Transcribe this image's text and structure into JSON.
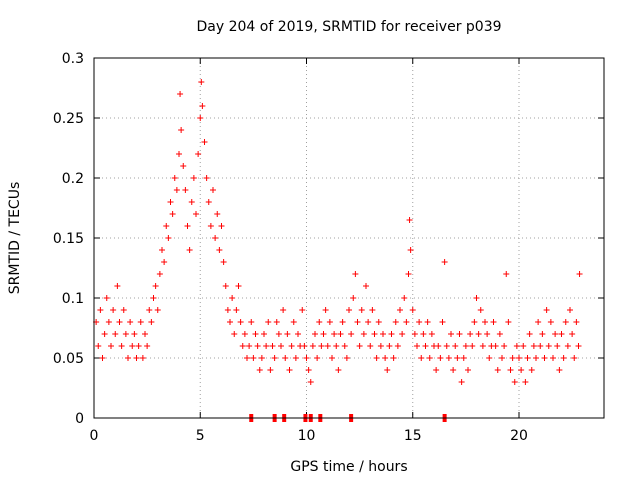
{
  "chart_data": {
    "type": "scatter",
    "title": "Day 204 of 2019, SRMTID for receiver p039",
    "xlabel": "GPS time / hours",
    "ylabel": "SRMTID / TECUs",
    "xlim": [
      0,
      24
    ],
    "ylim": [
      0,
      0.3
    ],
    "xticks": [
      0,
      5,
      10,
      15,
      20
    ],
    "xtick_labels": [
      "0",
      "5",
      "10",
      "15",
      "20"
    ],
    "yticks": [
      0,
      0.05,
      0.1,
      0.15,
      0.2,
      0.25,
      0.3
    ],
    "ytick_labels": [
      "0",
      "0.05",
      "0.1",
      "0.15",
      "0.2",
      "0.25",
      "0.3"
    ],
    "grid": true,
    "marker": "+",
    "color": "#ff0000",
    "series": [
      {
        "name": "SRMTID",
        "points": [
          [
            0.1,
            0.08
          ],
          [
            0.2,
            0.06
          ],
          [
            0.3,
            0.09
          ],
          [
            0.4,
            0.05
          ],
          [
            0.5,
            0.07
          ],
          [
            0.6,
            0.1
          ],
          [
            0.7,
            0.08
          ],
          [
            0.8,
            0.06
          ],
          [
            0.9,
            0.09
          ],
          [
            1.0,
            0.07
          ],
          [
            1.1,
            0.11
          ],
          [
            1.2,
            0.08
          ],
          [
            1.3,
            0.06
          ],
          [
            1.4,
            0.09
          ],
          [
            1.5,
            0.07
          ],
          [
            1.6,
            0.05
          ],
          [
            1.7,
            0.08
          ],
          [
            1.8,
            0.06
          ],
          [
            1.9,
            0.07
          ],
          [
            2.0,
            0.05
          ],
          [
            2.1,
            0.06
          ],
          [
            2.2,
            0.08
          ],
          [
            2.3,
            0.05
          ],
          [
            2.4,
            0.07
          ],
          [
            2.5,
            0.06
          ],
          [
            2.6,
            0.09
          ],
          [
            2.7,
            0.08
          ],
          [
            2.8,
            0.1
          ],
          [
            2.9,
            0.11
          ],
          [
            3.0,
            0.09
          ],
          [
            3.1,
            0.12
          ],
          [
            3.2,
            0.14
          ],
          [
            3.3,
            0.13
          ],
          [
            3.4,
            0.16
          ],
          [
            3.5,
            0.15
          ],
          [
            3.6,
            0.18
          ],
          [
            3.7,
            0.17
          ],
          [
            3.8,
            0.2
          ],
          [
            3.9,
            0.19
          ],
          [
            4.0,
            0.22
          ],
          [
            4.05,
            0.27
          ],
          [
            4.1,
            0.24
          ],
          [
            4.2,
            0.21
          ],
          [
            4.3,
            0.19
          ],
          [
            4.4,
            0.16
          ],
          [
            4.5,
            0.14
          ],
          [
            4.6,
            0.18
          ],
          [
            4.7,
            0.2
          ],
          [
            4.8,
            0.17
          ],
          [
            4.9,
            0.22
          ],
          [
            5.0,
            0.25
          ],
          [
            5.05,
            0.28
          ],
          [
            5.1,
            0.26
          ],
          [
            5.2,
            0.23
          ],
          [
            5.3,
            0.2
          ],
          [
            5.4,
            0.18
          ],
          [
            5.5,
            0.16
          ],
          [
            5.6,
            0.19
          ],
          [
            5.7,
            0.15
          ],
          [
            5.8,
            0.17
          ],
          [
            5.9,
            0.14
          ],
          [
            6.0,
            0.16
          ],
          [
            6.1,
            0.13
          ],
          [
            6.2,
            0.11
          ],
          [
            6.3,
            0.09
          ],
          [
            6.4,
            0.08
          ],
          [
            6.5,
            0.1
          ],
          [
            6.6,
            0.07
          ],
          [
            6.7,
            0.09
          ],
          [
            6.8,
            0.11
          ],
          [
            6.9,
            0.08
          ],
          [
            7.0,
            0.06
          ],
          [
            7.1,
            0.07
          ],
          [
            7.2,
            0.05
          ],
          [
            7.3,
            0.06
          ],
          [
            7.4,
            0.08
          ],
          [
            7.5,
            0.05
          ],
          [
            7.6,
            0.07
          ],
          [
            7.7,
            0.06
          ],
          [
            7.8,
            0.04
          ],
          [
            7.9,
            0.05
          ],
          [
            8.0,
            0.07
          ],
          [
            8.1,
            0.06
          ],
          [
            8.2,
            0.08
          ],
          [
            8.3,
            0.04
          ],
          [
            8.4,
            0.06
          ],
          [
            8.5,
            0.05
          ],
          [
            8.6,
            0.08
          ],
          [
            8.7,
            0.07
          ],
          [
            8.8,
            0.06
          ],
          [
            8.9,
            0.09
          ],
          [
            9.0,
            0.05
          ],
          [
            9.1,
            0.07
          ],
          [
            9.2,
            0.04
          ],
          [
            9.3,
            0.06
          ],
          [
            9.4,
            0.08
          ],
          [
            9.5,
            0.05
          ],
          [
            9.6,
            0.07
          ],
          [
            9.7,
            0.06
          ],
          [
            9.8,
            0.09
          ],
          [
            9.9,
            0.06
          ],
          [
            10.0,
            0.05
          ],
          [
            10.1,
            0.04
          ],
          [
            10.2,
            0.03
          ],
          [
            10.3,
            0.06
          ],
          [
            10.4,
            0.07
          ],
          [
            10.5,
            0.05
          ],
          [
            10.6,
            0.08
          ],
          [
            10.7,
            0.06
          ],
          [
            10.8,
            0.07
          ],
          [
            10.9,
            0.09
          ],
          [
            11.0,
            0.06
          ],
          [
            11.1,
            0.08
          ],
          [
            11.2,
            0.05
          ],
          [
            11.3,
            0.07
          ],
          [
            11.4,
            0.06
          ],
          [
            11.5,
            0.04
          ],
          [
            11.6,
            0.07
          ],
          [
            11.7,
            0.08
          ],
          [
            11.8,
            0.06
          ],
          [
            11.9,
            0.05
          ],
          [
            12.0,
            0.09
          ],
          [
            12.1,
            0.07
          ],
          [
            12.2,
            0.1
          ],
          [
            12.3,
            0.12
          ],
          [
            12.4,
            0.08
          ],
          [
            12.5,
            0.06
          ],
          [
            12.6,
            0.09
          ],
          [
            12.7,
            0.07
          ],
          [
            12.8,
            0.11
          ],
          [
            12.9,
            0.08
          ],
          [
            13.0,
            0.06
          ],
          [
            13.1,
            0.09
          ],
          [
            13.2,
            0.07
          ],
          [
            13.3,
            0.05
          ],
          [
            13.4,
            0.08
          ],
          [
            13.5,
            0.06
          ],
          [
            13.6,
            0.07
          ],
          [
            13.7,
            0.05
          ],
          [
            13.8,
            0.04
          ],
          [
            13.9,
            0.06
          ],
          [
            14.0,
            0.07
          ],
          [
            14.1,
            0.05
          ],
          [
            14.2,
            0.08
          ],
          [
            14.3,
            0.06
          ],
          [
            14.4,
            0.09
          ],
          [
            14.5,
            0.07
          ],
          [
            14.6,
            0.1
          ],
          [
            14.7,
            0.08
          ],
          [
            14.8,
            0.12
          ],
          [
            14.85,
            0.165
          ],
          [
            14.9,
            0.14
          ],
          [
            15.0,
            0.09
          ],
          [
            15.1,
            0.07
          ],
          [
            15.2,
            0.06
          ],
          [
            15.3,
            0.08
          ],
          [
            15.4,
            0.05
          ],
          [
            15.5,
            0.07
          ],
          [
            15.6,
            0.06
          ],
          [
            15.7,
            0.08
          ],
          [
            15.8,
            0.05
          ],
          [
            15.9,
            0.07
          ],
          [
            16.0,
            0.06
          ],
          [
            16.1,
            0.04
          ],
          [
            16.2,
            0.06
          ],
          [
            16.3,
            0.05
          ],
          [
            16.4,
            0.08
          ],
          [
            16.5,
            0.13
          ],
          [
            16.6,
            0.06
          ],
          [
            16.7,
            0.05
          ],
          [
            16.8,
            0.07
          ],
          [
            16.9,
            0.04
          ],
          [
            17.0,
            0.06
          ],
          [
            17.1,
            0.05
          ],
          [
            17.2,
            0.07
          ],
          [
            17.3,
            0.03
          ],
          [
            17.4,
            0.05
          ],
          [
            17.5,
            0.06
          ],
          [
            17.6,
            0.04
          ],
          [
            17.7,
            0.07
          ],
          [
            17.8,
            0.06
          ],
          [
            17.9,
            0.08
          ],
          [
            18.0,
            0.1
          ],
          [
            18.1,
            0.07
          ],
          [
            18.2,
            0.09
          ],
          [
            18.3,
            0.06
          ],
          [
            18.4,
            0.08
          ],
          [
            18.5,
            0.07
          ],
          [
            18.6,
            0.05
          ],
          [
            18.7,
            0.06
          ],
          [
            18.8,
            0.08
          ],
          [
            18.9,
            0.06
          ],
          [
            19.0,
            0.04
          ],
          [
            19.1,
            0.07
          ],
          [
            19.2,
            0.05
          ],
          [
            19.3,
            0.06
          ],
          [
            19.4,
            0.12
          ],
          [
            19.5,
            0.08
          ],
          [
            19.6,
            0.04
          ],
          [
            19.7,
            0.05
          ],
          [
            19.8,
            0.03
          ],
          [
            19.9,
            0.06
          ],
          [
            20.0,
            0.05
          ],
          [
            20.1,
            0.04
          ],
          [
            20.2,
            0.06
          ],
          [
            20.3,
            0.03
          ],
          [
            20.4,
            0.05
          ],
          [
            20.5,
            0.07
          ],
          [
            20.6,
            0.04
          ],
          [
            20.7,
            0.06
          ],
          [
            20.8,
            0.05
          ],
          [
            20.9,
            0.08
          ],
          [
            21.0,
            0.06
          ],
          [
            21.1,
            0.07
          ],
          [
            21.2,
            0.05
          ],
          [
            21.3,
            0.09
          ],
          [
            21.4,
            0.06
          ],
          [
            21.5,
            0.08
          ],
          [
            21.6,
            0.05
          ],
          [
            21.7,
            0.07
          ],
          [
            21.8,
            0.06
          ],
          [
            21.9,
            0.04
          ],
          [
            22.0,
            0.07
          ],
          [
            22.1,
            0.05
          ],
          [
            22.2,
            0.08
          ],
          [
            22.3,
            0.06
          ],
          [
            22.4,
            0.09
          ],
          [
            22.5,
            0.07
          ],
          [
            22.6,
            0.05
          ],
          [
            22.7,
            0.08
          ],
          [
            22.8,
            0.06
          ],
          [
            22.85,
            0.12
          ]
        ]
      }
    ],
    "zero_markers_x": [
      7.4,
      8.5,
      8.95,
      9.95,
      10.2,
      10.65,
      12.1,
      16.5
    ]
  }
}
